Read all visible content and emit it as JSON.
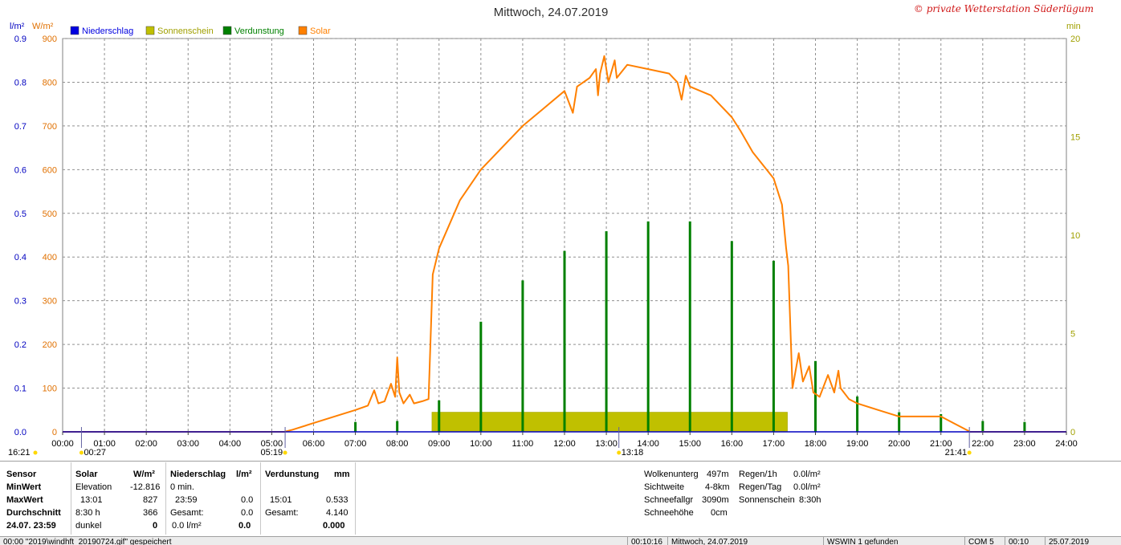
{
  "chart_data": {
    "type": "bar+line",
    "title": "Mittwoch, 24.07.2019",
    "credit": "© private Wetterstation Süderlügum",
    "left_axis_label_1": "l/m²",
    "left_axis_label_2": "W/m²",
    "right_axis_label": "min",
    "legend": [
      "Niederschlag",
      "Sonnenschein",
      "Verdunstung",
      "Solar"
    ],
    "legend_colors": [
      "#0000e0",
      "#c0c000",
      "#008000",
      "#ff8000"
    ],
    "precip_ticks": [
      "0.0",
      "0.1",
      "0.2",
      "0.3",
      "0.4",
      "0.5",
      "0.6",
      "0.7",
      "0.8",
      "0.9"
    ],
    "solar_ticks": [
      "0",
      "100",
      "200",
      "300",
      "400",
      "500",
      "600",
      "700",
      "800",
      "900"
    ],
    "min_ticks": [
      "0",
      "5",
      "10",
      "15",
      "20"
    ],
    "solar_ylim": [
      0,
      900
    ],
    "min_ylim": [
      0,
      20
    ],
    "x_tick_labels": [
      "00:00",
      "01:00",
      "02:00",
      "03:00",
      "04:00",
      "05:00",
      "06:00",
      "07:00",
      "08:00",
      "09:00",
      "10:00",
      "11:00",
      "12:00",
      "13:00",
      "14:00",
      "15:00",
      "16:00",
      "17:00",
      "18:00",
      "19:00",
      "20:00",
      "21:00",
      "22:00",
      "23:00",
      "24:00"
    ],
    "x_range_hours": [
      0,
      24
    ],
    "sunshine_block": {
      "start_h": 8.83,
      "end_h": 17.33,
      "value_min": 1
    },
    "evaporation_bars": [
      {
        "h": 7.0,
        "v": 0.5
      },
      {
        "h": 8.0,
        "v": 0.55
      },
      {
        "h": 9.0,
        "v": 1.6
      },
      {
        "h": 10.0,
        "v": 5.6
      },
      {
        "h": 11.0,
        "v": 7.7
      },
      {
        "h": 12.0,
        "v": 9.2
      },
      {
        "h": 13.0,
        "v": 10.2
      },
      {
        "h": 14.0,
        "v": 10.7
      },
      {
        "h": 15.0,
        "v": 10.7
      },
      {
        "h": 16.0,
        "v": 9.7
      },
      {
        "h": 17.0,
        "v": 8.7
      },
      {
        "h": 18.0,
        "v": 3.6
      },
      {
        "h": 19.0,
        "v": 1.8
      },
      {
        "h": 20.0,
        "v": 1.0
      },
      {
        "h": 21.0,
        "v": 0.9
      },
      {
        "h": 22.0,
        "v": 0.55
      },
      {
        "h": 23.0,
        "v": 0.5
      }
    ],
    "solar_series": [
      [
        0,
        0
      ],
      [
        4.5,
        0
      ],
      [
        5.3,
        0
      ],
      [
        5.5,
        5
      ],
      [
        6.0,
        20
      ],
      [
        6.5,
        35
      ],
      [
        7.0,
        50
      ],
      [
        7.3,
        60
      ],
      [
        7.45,
        95
      ],
      [
        7.55,
        65
      ],
      [
        7.7,
        70
      ],
      [
        7.85,
        110
      ],
      [
        7.95,
        80
      ],
      [
        8.0,
        170
      ],
      [
        8.05,
        90
      ],
      [
        8.15,
        65
      ],
      [
        8.3,
        85
      ],
      [
        8.4,
        65
      ],
      [
        8.6,
        70
      ],
      [
        8.75,
        75
      ],
      [
        8.85,
        360
      ],
      [
        9.0,
        420
      ],
      [
        9.5,
        530
      ],
      [
        10.0,
        600
      ],
      [
        10.5,
        650
      ],
      [
        11.0,
        700
      ],
      [
        11.5,
        740
      ],
      [
        12.0,
        780
      ],
      [
        12.2,
        730
      ],
      [
        12.3,
        790
      ],
      [
        12.6,
        810
      ],
      [
        12.75,
        830
      ],
      [
        12.8,
        770
      ],
      [
        12.85,
        820
      ],
      [
        12.95,
        860
      ],
      [
        13.05,
        800
      ],
      [
        13.2,
        850
      ],
      [
        13.25,
        810
      ],
      [
        13.5,
        840
      ],
      [
        14.0,
        830
      ],
      [
        14.5,
        820
      ],
      [
        14.7,
        800
      ],
      [
        14.8,
        760
      ],
      [
        14.9,
        815
      ],
      [
        15.0,
        790
      ],
      [
        15.5,
        770
      ],
      [
        16.0,
        720
      ],
      [
        16.2,
        690
      ],
      [
        16.5,
        640
      ],
      [
        17.0,
        580
      ],
      [
        17.2,
        520
      ],
      [
        17.3,
        420
      ],
      [
        17.35,
        380
      ],
      [
        17.45,
        100
      ],
      [
        17.6,
        180
      ],
      [
        17.7,
        115
      ],
      [
        17.85,
        150
      ],
      [
        17.95,
        90
      ],
      [
        18.1,
        80
      ],
      [
        18.3,
        130
      ],
      [
        18.45,
        90
      ],
      [
        18.55,
        140
      ],
      [
        18.6,
        100
      ],
      [
        18.8,
        75
      ],
      [
        19.0,
        65
      ],
      [
        19.5,
        50
      ],
      [
        20.0,
        35
      ],
      [
        20.5,
        35
      ],
      [
        21.0,
        35
      ],
      [
        21.3,
        20
      ],
      [
        21.6,
        5
      ],
      [
        21.7,
        0
      ],
      [
        24.0,
        0
      ]
    ],
    "precip_values": [],
    "grid": true,
    "legend_position": "top-left",
    "time_markers": [
      {
        "h": 0.45,
        "label": "00:27"
      },
      {
        "h": 5.32,
        "label": "05:19"
      },
      {
        "h": 13.3,
        "label": "13:18"
      },
      {
        "h": 21.68,
        "label": "21:41"
      }
    ],
    "corner_label": "16:21"
  },
  "stats": {
    "sensor": {
      "label": "Sensor",
      "minwert": "MinWert",
      "maxwert": "MaxWert",
      "durchschnitt": "Durchschnitt",
      "date": "24.07. 23:59"
    },
    "solar": {
      "header": "Solar",
      "unit": "W/m²",
      "r1a": "Elevation",
      "r1b": "-12.816",
      "r2a": "13:01",
      "r2b": "827",
      "r3a": "8:30 h",
      "r3b": "366",
      "r4a": "dunkel",
      "r4b": "0"
    },
    "niederschlag": {
      "header": "Niederschlag",
      "unit": "l/m²",
      "r1a": "0 min.",
      "r2a": "23:59",
      "r2b": "0.0",
      "r3a": "Gesamt:",
      "r3b": "0.0",
      "r4a": "0.0 l/m²",
      "r4b": "0.0"
    },
    "verdunstung": {
      "header": "Verdunstung",
      "unit": "mm",
      "r2a": "15:01",
      "r2b": "0.533",
      "r3a": "Gesamt:",
      "r3b": "4.140",
      "r4b": "0.000"
    },
    "weather": {
      "w1a": "Wolkenunterg",
      "w1b": "497m",
      "w2a": "Sichtweite",
      "w2b": "4-8km",
      "w3a": "Schneefallgr",
      "w3b": "3090m",
      "w4a": "Schneehöhe",
      "w4b": "0cm"
    },
    "rain": {
      "r1a": "Regen/1h",
      "r1b": "0.0l/m²",
      "r2a": "Regen/Tag",
      "r2b": "0.0l/m²",
      "r3a": "Sonnenschein",
      "r3b": "8:30h"
    }
  },
  "status": {
    "s1": "00:00 \"2019\\windhft_20190724.gif\" gespeichert",
    "s2": "00:10:16",
    "s3": "Mittwoch, 24.07.2019",
    "s4": "WSWIN 1 gefunden",
    "s5": "COM 5",
    "s6": "00:10",
    "s7": "25.07.2019"
  }
}
